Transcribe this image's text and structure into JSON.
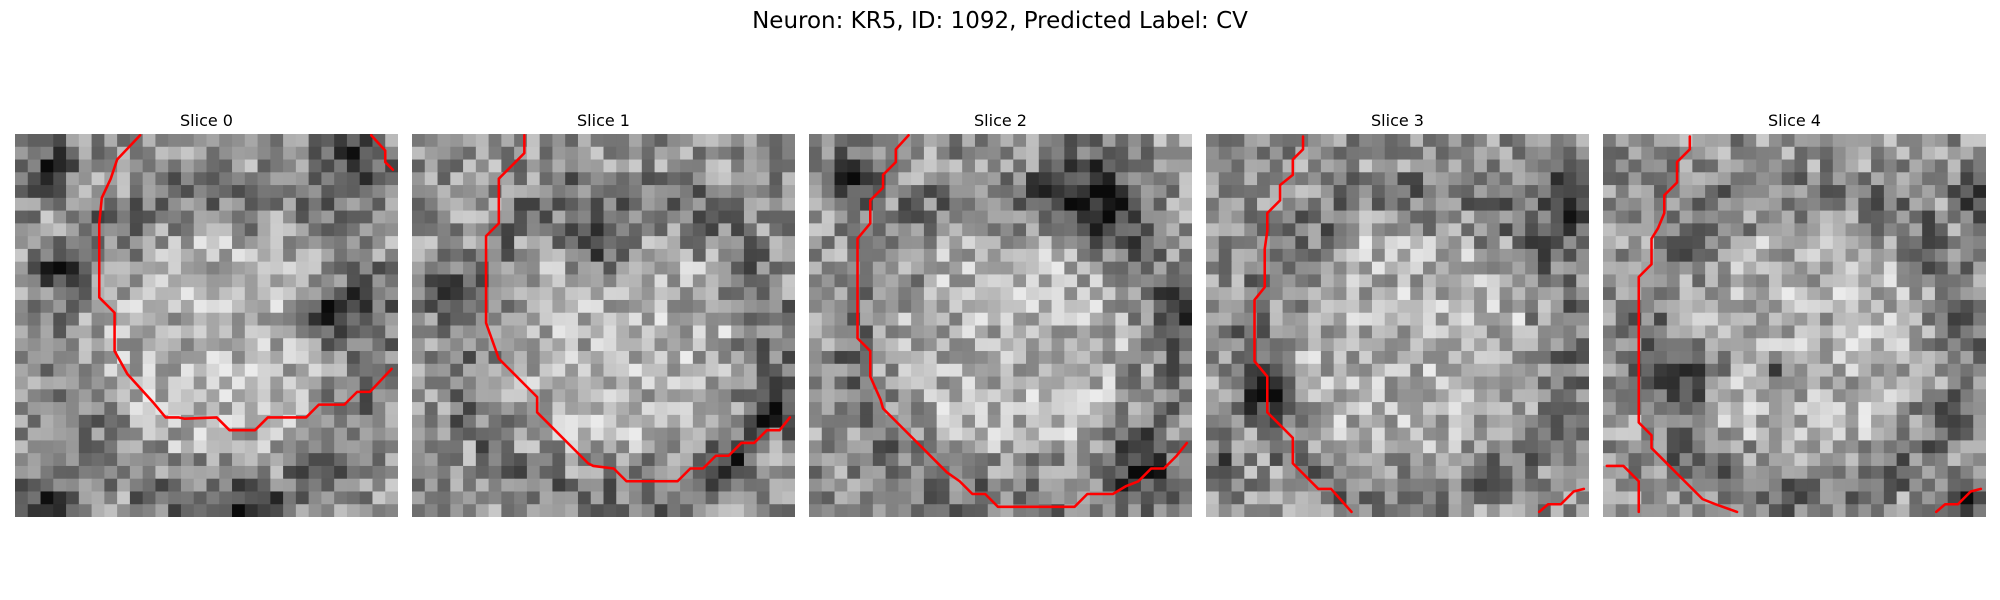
{
  "figure": {
    "title": "Neuron: KR5, ID: 1092, Predicted Label: CV"
  },
  "panels": [
    {
      "title": "Slice 0",
      "image_description": "Grayscale microscopy slice, 30x30 noisy pixels",
      "contour": [
        [
          [
            9.8,
            0.1
          ],
          [
            8,
            2
          ],
          [
            7.5,
            3.5
          ],
          [
            6.8,
            5
          ],
          [
            6.6,
            7
          ],
          [
            6.6,
            12.8
          ],
          [
            7.8,
            14
          ],
          [
            7.8,
            17
          ],
          [
            8.8,
            18.8
          ],
          [
            10.8,
            21
          ],
          [
            11.8,
            22.2
          ],
          [
            12.8,
            22.2
          ],
          [
            13.3,
            22.3
          ],
          [
            15.8,
            22.2
          ],
          [
            16.8,
            23.2
          ],
          [
            18.8,
            23.2
          ],
          [
            19.8,
            22.2
          ],
          [
            22.8,
            22.2
          ],
          [
            23.8,
            21.2
          ],
          [
            25.8,
            21.2
          ],
          [
            26.8,
            20.2
          ],
          [
            27.8,
            20.2
          ],
          [
            29.5,
            18.4
          ]
        ],
        [
          [
            27.9,
            0.1
          ],
          [
            29,
            1.3
          ],
          [
            29,
            2.2
          ],
          [
            29.6,
            2.8
          ]
        ]
      ],
      "seed": 11
    },
    {
      "title": "Slice 1",
      "image_description": "Grayscale microscopy slice, 30x30 noisy pixels",
      "contour": [
        [
          [
            8.8,
            0.1
          ],
          [
            8.8,
            1.5
          ],
          [
            7.8,
            2.5
          ],
          [
            6.8,
            3.5
          ],
          [
            6.8,
            7
          ],
          [
            5.8,
            8
          ],
          [
            5.8,
            13
          ],
          [
            5.8,
            14.8
          ],
          [
            6.8,
            17.6
          ],
          [
            7.8,
            18.6
          ],
          [
            8.8,
            19.6
          ],
          [
            9.8,
            20.6
          ],
          [
            9.8,
            21.8
          ],
          [
            10.8,
            22.8
          ],
          [
            11.8,
            23.8
          ],
          [
            12.8,
            24.8
          ],
          [
            13.8,
            25.8
          ],
          [
            14.2,
            26
          ],
          [
            15.8,
            26.2
          ],
          [
            16.8,
            27.2
          ],
          [
            20.8,
            27.2
          ],
          [
            21.8,
            26.2
          ],
          [
            22.8,
            26.2
          ],
          [
            23.8,
            25.2
          ],
          [
            24.8,
            25.2
          ],
          [
            25.8,
            24.2
          ],
          [
            26.8,
            24.2
          ],
          [
            27.8,
            23.2
          ],
          [
            28.8,
            23.2
          ],
          [
            29.6,
            22.2
          ]
        ]
      ],
      "seed": 23
    },
    {
      "title": "Slice 2",
      "image_description": "Grayscale microscopy slice, 30x30 noisy pixels",
      "contour": [
        [
          [
            7.8,
            0.1
          ],
          [
            6.8,
            1.2
          ],
          [
            6.8,
            2.2
          ],
          [
            5.8,
            3.2
          ],
          [
            5.8,
            4.2
          ],
          [
            4.8,
            5.2
          ],
          [
            4.8,
            7
          ],
          [
            3.8,
            8.2
          ],
          [
            3.8,
            16
          ],
          [
            4.8,
            17
          ],
          [
            4.8,
            19
          ],
          [
            5.6,
            20.8
          ],
          [
            5.8,
            21.5
          ],
          [
            6.8,
            22.5
          ],
          [
            7.8,
            23.5
          ],
          [
            8.8,
            24.5
          ],
          [
            9.8,
            25.5
          ],
          [
            10.8,
            26.5
          ],
          [
            11.8,
            27.2
          ],
          [
            12.8,
            28.2
          ],
          [
            13.8,
            28.2
          ],
          [
            14.8,
            29.2
          ],
          [
            20.8,
            29.2
          ],
          [
            21.8,
            28.2
          ],
          [
            23.8,
            28.2
          ],
          [
            24.8,
            27.6
          ],
          [
            25.8,
            27.2
          ],
          [
            26.8,
            26.2
          ],
          [
            27.8,
            26.2
          ],
          [
            28.8,
            25.2
          ],
          [
            29.6,
            24.2
          ]
        ]
      ],
      "seed": 37
    },
    {
      "title": "Slice 3",
      "image_description": "Grayscale microscopy slice, 30x30 noisy pixels",
      "contour": [
        [
          [
            7.6,
            0.2
          ],
          [
            7.6,
            1.2
          ],
          [
            6.8,
            2
          ],
          [
            6.8,
            3.2
          ],
          [
            5.8,
            4
          ],
          [
            5.8,
            5.2
          ],
          [
            4.8,
            6.2
          ],
          [
            4.8,
            7.6
          ],
          [
            4.6,
            9
          ],
          [
            4.6,
            12
          ],
          [
            3.8,
            13
          ],
          [
            3.8,
            17.8
          ],
          [
            4.8,
            19
          ],
          [
            4.8,
            21.8
          ],
          [
            5.8,
            22.8
          ],
          [
            6.8,
            23.8
          ],
          [
            6.8,
            25.8
          ],
          [
            7.8,
            26.8
          ],
          [
            8.8,
            27.8
          ],
          [
            9.8,
            27.8
          ],
          [
            11.4,
            29.6
          ]
        ],
        [
          [
            26.1,
            29.6
          ],
          [
            26.8,
            29
          ],
          [
            27.8,
            29
          ],
          [
            28.8,
            28
          ],
          [
            29.6,
            27.8
          ]
        ]
      ],
      "seed": 53
    },
    {
      "title": "Slice 4",
      "image_description": "Grayscale microscopy slice, 30x30 noisy pixels",
      "contour": [
        [
          [
            6.8,
            0.2
          ],
          [
            6.8,
            1.2
          ],
          [
            5.8,
            2.2
          ],
          [
            5.8,
            3.8
          ],
          [
            4.8,
            4.8
          ],
          [
            4.8,
            6.2
          ],
          [
            4.3,
            7.4
          ],
          [
            3.8,
            8.2
          ],
          [
            3.8,
            10.2
          ],
          [
            2.8,
            11.2
          ],
          [
            2.8,
            22.6
          ],
          [
            3.8,
            23.6
          ],
          [
            3.8,
            24.6
          ],
          [
            4.8,
            25.6
          ],
          [
            5.8,
            26.6
          ],
          [
            6.8,
            27.6
          ],
          [
            7.8,
            28.6
          ],
          [
            8.8,
            29
          ],
          [
            10.5,
            29.6
          ]
        ],
        [
          [
            0.3,
            26
          ],
          [
            1.6,
            26
          ],
          [
            2.8,
            27.2
          ],
          [
            2.8,
            29.6
          ]
        ],
        [
          [
            26.1,
            29.6
          ],
          [
            26.8,
            29
          ],
          [
            27.8,
            29
          ],
          [
            28.8,
            28
          ],
          [
            29.6,
            27.8
          ]
        ]
      ],
      "seed": 71
    }
  ]
}
